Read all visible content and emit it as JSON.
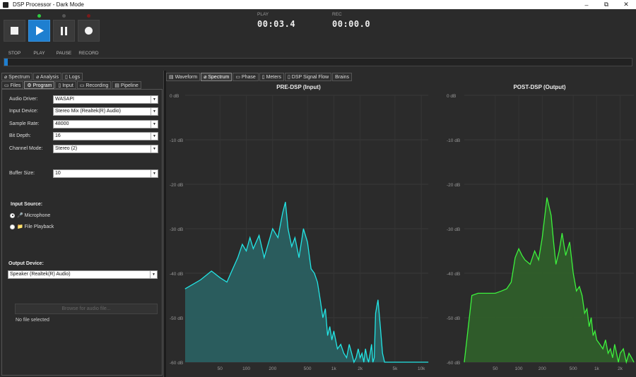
{
  "window": {
    "title": "DSP Processor - Dark Mode",
    "minimize": "–",
    "maximize": "⧉",
    "close": "✕"
  },
  "transport": {
    "stop_label": "STOP",
    "play_label": "PLAY",
    "pause_label": "PAUSE",
    "record_label": "RECORD",
    "play_led_color": "#2ecc40",
    "pause_led_color": "#555555",
    "record_led_color": "#7a1a1a"
  },
  "readouts": {
    "play_label": "PLAY",
    "play_time": "00:03.4",
    "rec_label": "REC",
    "rec_time": "00:00.0"
  },
  "progress": {
    "fraction": 0.006
  },
  "left_tabs_row1": [
    "Spectrum",
    "Analysis",
    "Logs"
  ],
  "left_tabs_row2": [
    "Files",
    "Program",
    "Input",
    "Recording",
    "Pipeline"
  ],
  "left_active_tab": "Program",
  "program": {
    "audio_driver_label": "Audio Driver:",
    "audio_driver_value": "WASAPI",
    "input_device_label": "Input Device:",
    "input_device_value": "Stereo Mix (Realtek(R) Audio)",
    "sample_rate_label": "Sample Rate:",
    "sample_rate_value": "48000",
    "bit_depth_label": "Bit Depth:",
    "bit_depth_value": "16",
    "channel_mode_label": "Channel Mode:",
    "channel_mode_value": "Stereo (2)",
    "buffer_size_label": "Buffer Size:",
    "buffer_size_value": "10",
    "input_source_title": "Input Source:",
    "microphone_label": "🎤 Microphone",
    "file_playback_label": "📁 File Playback",
    "browse_label": "Browse for audio file...",
    "no_file_label": "No file selected",
    "output_device_title": "Output Device:",
    "output_device_value": "Speaker (Realtek(R) Audio)"
  },
  "right_tabs": [
    "Waveform",
    "Spectrum",
    "Phase",
    "Meters",
    "DSP Signal Flow",
    "Brains"
  ],
  "right_active_tab": "Spectrum",
  "chart_data": [
    {
      "type": "area",
      "title": "PRE-DSP (Input)",
      "color": "#22e6e6",
      "fill": "#2a5f60",
      "y_ticks": [
        "0 dB",
        "-10 dB",
        "-20 dB",
        "-30 dB",
        "-40 dB",
        "-50 dB",
        "-60 dB"
      ],
      "x_ticks": [
        "50",
        "100",
        "200",
        "500",
        "1k",
        "2k",
        "5k",
        "10k"
      ],
      "ylim": [
        -60,
        0
      ],
      "xlim": [
        20,
        12000
      ],
      "log_x": true,
      "grid": true,
      "x": [
        20,
        30,
        40,
        50,
        60,
        70,
        80,
        90,
        100,
        110,
        120,
        140,
        160,
        180,
        200,
        230,
        260,
        280,
        300,
        330,
        360,
        400,
        450,
        500,
        550,
        600,
        650,
        700,
        750,
        800,
        850,
        900,
        950,
        1000,
        1100,
        1200,
        1300,
        1400,
        1500,
        1600,
        1700,
        1800,
        1900,
        2000,
        2100,
        2200,
        2300,
        2400,
        2500,
        2600,
        2700,
        2800,
        2900,
        3000,
        3200,
        3400,
        3600,
        3800,
        4000,
        4200,
        4400,
        4600,
        4800,
        5000,
        6000,
        8000,
        10000,
        12000
      ],
      "y": [
        -43.5,
        -41.5,
        -39.5,
        -41,
        -42,
        -39,
        -36.5,
        -33.5,
        -35,
        -32,
        -34.5,
        -31.5,
        -36.5,
        -33,
        -30,
        -32,
        -26.5,
        -24,
        -30,
        -34,
        -32,
        -36.5,
        -30,
        -33,
        -39,
        -40,
        -42,
        -46,
        -50,
        -48,
        -54,
        -52,
        -55,
        -53,
        -57,
        -56,
        -58,
        -59,
        -56,
        -58,
        -60,
        -59,
        -57,
        -59,
        -58,
        -60,
        -57,
        -59,
        -60,
        -58,
        -56,
        -60,
        -59,
        -49,
        -46,
        -52,
        -58,
        -60,
        -60,
        -60,
        -60,
        -60,
        -60,
        -60,
        -60,
        -60,
        -60,
        -60
      ]
    },
    {
      "type": "area",
      "title": "POST-DSP (Output)",
      "color": "#3df23d",
      "fill": "#2f5e2a",
      "y_ticks": [
        "0 dB",
        "-10 dB",
        "-20 dB",
        "-30 dB",
        "-40 dB",
        "-50 dB",
        "-60 dB"
      ],
      "x_ticks": [
        "50",
        "100",
        "200",
        "500",
        "1k",
        "2k"
      ],
      "ylim": [
        -60,
        0
      ],
      "xlim": [
        20,
        3000
      ],
      "log_x": true,
      "grid": true,
      "x": [
        20,
        25,
        30,
        40,
        50,
        60,
        70,
        80,
        90,
        100,
        110,
        120,
        140,
        160,
        180,
        200,
        230,
        260,
        280,
        300,
        330,
        360,
        400,
        450,
        500,
        550,
        600,
        650,
        700,
        750,
        800,
        850,
        900,
        950,
        1000,
        1100,
        1200,
        1300,
        1400,
        1500,
        1600,
        1700,
        1800,
        1900,
        2000,
        2200,
        2400,
        2600,
        2800,
        3000
      ],
      "y": [
        -60,
        -45,
        -44.5,
        -44.5,
        -44.5,
        -44,
        -43.5,
        -42,
        -36.5,
        -34.5,
        -36,
        -37,
        -38,
        -35,
        -37,
        -32,
        -23,
        -27,
        -33,
        -38,
        -35,
        -31,
        -36,
        -33,
        -40,
        -44,
        -43,
        -45,
        -49,
        -48,
        -52,
        -50,
        -54,
        -53,
        -55,
        -56,
        -57,
        -55,
        -58,
        -57,
        -59,
        -56,
        -58,
        -60,
        -58,
        -57,
        -60,
        -58,
        -59,
        -60
      ]
    }
  ]
}
